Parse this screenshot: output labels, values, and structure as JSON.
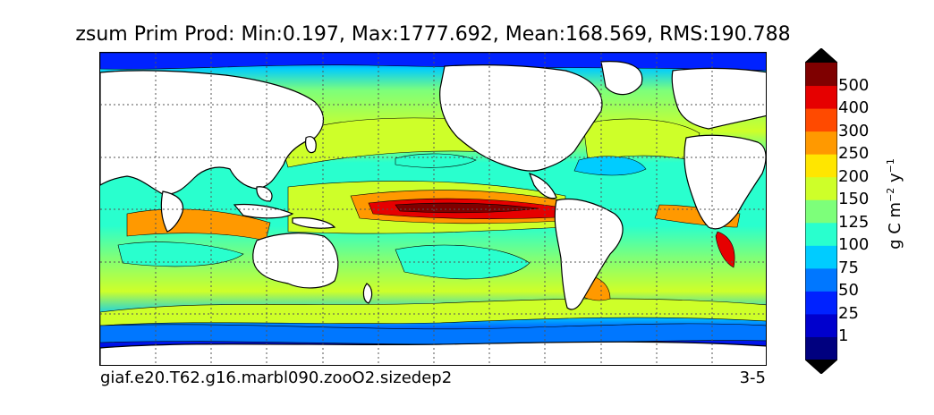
{
  "title": "zsum Prim Prod: Min:0.197, Max:1777.692, Mean:168.569, RMS:190.788",
  "footer_left": "giaf.e20.T62.g16.marbl090.zooO2.sizedep2",
  "footer_right": "3-5",
  "colorbar": {
    "title_prefix": "g C m",
    "exp1": "−2",
    "title_mid": " y",
    "exp2": "−1",
    "levels": [
      "1",
      "25",
      "50",
      "75",
      "100",
      "125",
      "150",
      "200",
      "250",
      "300",
      "400",
      "500"
    ],
    "colors": [
      "#00007f",
      "#0000cd",
      "#0022ff",
      "#0077ff",
      "#00ccff",
      "#29ffce",
      "#7dff7a",
      "#ceff29",
      "#ffe600",
      "#ff9900",
      "#ff4a00",
      "#e60000",
      "#7f0000"
    ],
    "under_color": "#000000",
    "over_color": "#000000"
  },
  "map": {
    "land_color": "#ffffff",
    "coastline_color": "#000000",
    "grid": "dotted"
  }
}
